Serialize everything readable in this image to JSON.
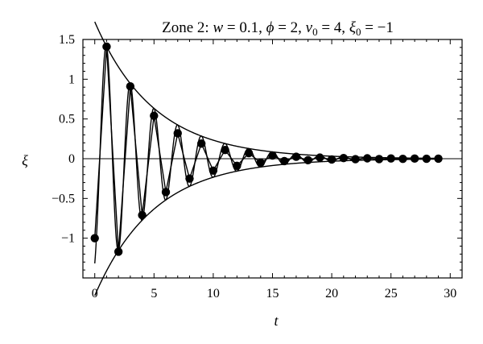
{
  "chart_data": {
    "type": "line",
    "title": "Zone 2: w = 0.1, ϕ = 2, ν0 = 4, ξ0 = −1",
    "title_parts": {
      "zone": "Zone 2: ",
      "w_sym": "w",
      "w_val": " = 0.1, ",
      "phi_sym": "ϕ",
      "phi_val": " = 2, ",
      "nu_sym": "ν",
      "nu_sub": "0",
      "nu_val": " = 4, ",
      "xi_sym": "ξ",
      "xi_sub": "0",
      "xi_val": " = −1"
    },
    "xlabel": "t",
    "ylabel": "ξ",
    "xlim": [
      -1,
      31
    ],
    "ylim": [
      -1.5,
      1.5
    ],
    "xticks": [
      0,
      5,
      10,
      15,
      20,
      25,
      30
    ],
    "xtick_labels": [
      "0",
      "5",
      "10",
      "15",
      "20",
      "25",
      "30"
    ],
    "yticks": [
      1.5,
      1,
      0.5,
      0,
      -0.5,
      -1
    ],
    "ytick_labels": [
      "1.5",
      "1",
      "0.5",
      "0",
      "−0.5",
      "−1"
    ],
    "grid": false,
    "model": {
      "amplitude": 1.41,
      "decay_rate": 0.2,
      "angular_frequency": 3.1416,
      "offset": 0,
      "t_start": 0,
      "t_end": 29
    },
    "series": [
      {
        "points": [
          [
            0,
            -1.0
          ],
          [
            1,
            1.41
          ],
          [
            2,
            -1.17
          ],
          [
            3,
            0.91
          ],
          [
            4,
            -0.71
          ],
          [
            5,
            0.54
          ],
          [
            6,
            -0.42
          ],
          [
            7,
            0.32
          ],
          [
            8,
            -0.25
          ],
          [
            9,
            0.19
          ],
          [
            10,
            -0.15
          ],
          [
            11,
            0.11
          ],
          [
            12,
            -0.09
          ],
          [
            13,
            0.07
          ],
          [
            14,
            -0.05
          ],
          [
            15,
            0.04
          ],
          [
            16,
            -0.03
          ],
          [
            17,
            0.025
          ],
          [
            18,
            -0.018
          ],
          [
            19,
            0.014
          ],
          [
            20,
            -0.01
          ],
          [
            21,
            0.008
          ],
          [
            22,
            -0.006
          ],
          [
            23,
            0.005
          ],
          [
            24,
            -0.004
          ],
          [
            25,
            0.003
          ],
          [
            26,
            -0.002
          ],
          [
            27,
            0.0015
          ],
          [
            28,
            -0.001
          ],
          [
            29,
            0.0008
          ]
        ]
      }
    ]
  }
}
